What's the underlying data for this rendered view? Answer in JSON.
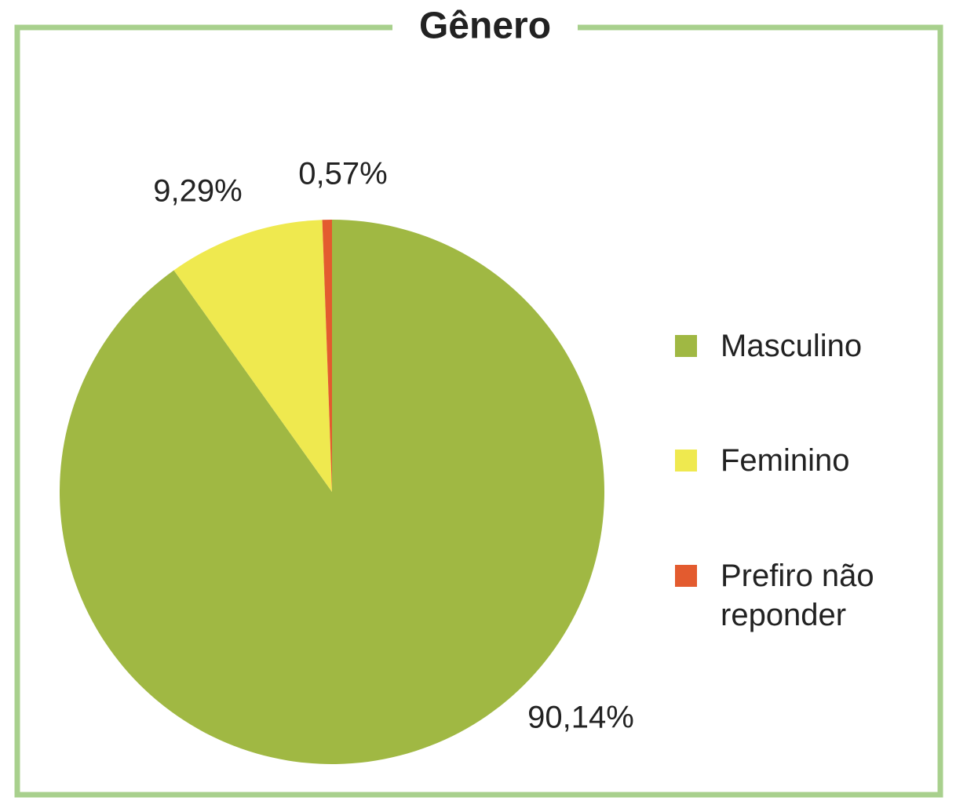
{
  "chart_data": {
    "type": "pie",
    "title": "Gênero",
    "categories": [
      "Masculino",
      "Feminino",
      "Prefiro não reponder"
    ],
    "values": [
      90.14,
      9.29,
      0.57
    ],
    "value_labels": [
      "90,14%",
      "9,29%",
      "0,57%"
    ],
    "colors": [
      "#a0b843",
      "#efe94f",
      "#e35b2f"
    ],
    "legend": "right"
  }
}
